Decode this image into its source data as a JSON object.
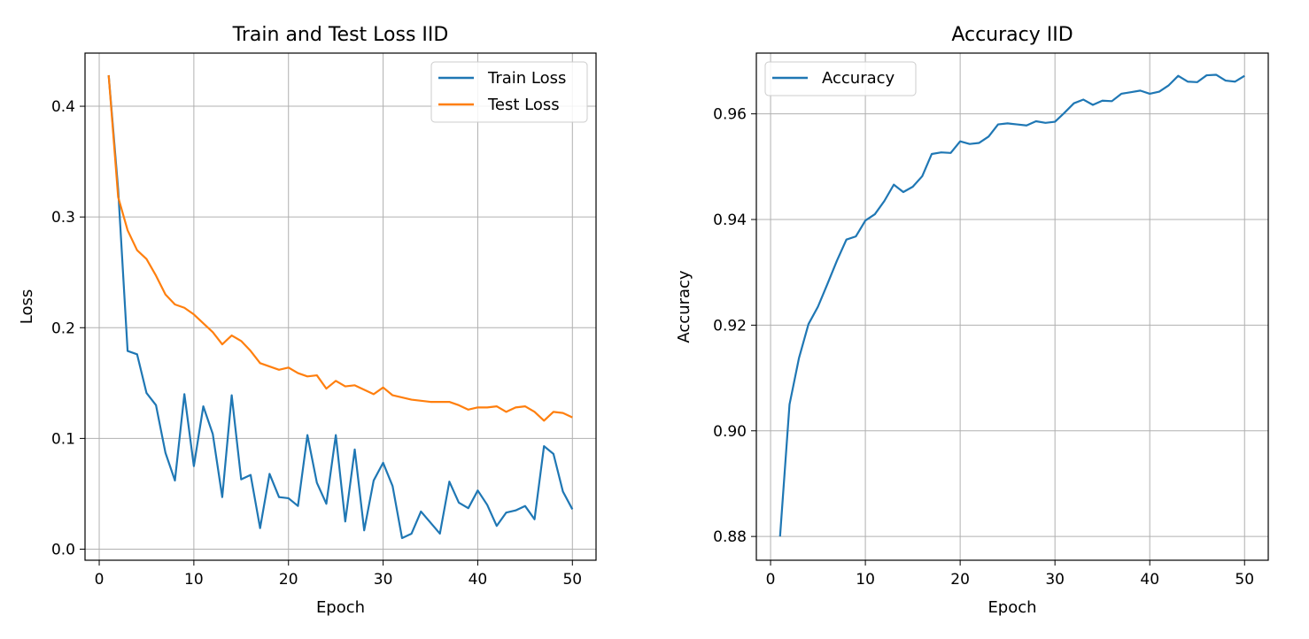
{
  "chart_data": [
    {
      "type": "line",
      "title": "Train and Test Loss IID",
      "xlabel": "Epoch",
      "ylabel": "Loss",
      "xlim": [
        -1.5,
        52.5
      ],
      "ylim": [
        -0.01,
        0.448
      ],
      "xticks": [
        0,
        10,
        20,
        30,
        40,
        50
      ],
      "xtick_labels": [
        "0",
        "10",
        "20",
        "30",
        "40",
        "50"
      ],
      "yticks": [
        0.0,
        0.1,
        0.2,
        0.3,
        0.4
      ],
      "ytick_labels": [
        "0.0",
        "0.1",
        "0.2",
        "0.3",
        "0.4"
      ],
      "grid": true,
      "legend": "top-right",
      "x": [
        1,
        2,
        3,
        4,
        5,
        6,
        7,
        8,
        9,
        10,
        11,
        12,
        13,
        14,
        15,
        16,
        17,
        18,
        19,
        20,
        21,
        22,
        23,
        24,
        25,
        26,
        27,
        28,
        29,
        30,
        31,
        32,
        33,
        34,
        35,
        36,
        37,
        38,
        39,
        40,
        41,
        42,
        43,
        44,
        45,
        46,
        47,
        48,
        49,
        50
      ],
      "series": [
        {
          "name": "Train Loss",
          "color": "#1f77b4",
          "values": [
            0.428,
            0.325,
            0.179,
            0.176,
            0.141,
            0.13,
            0.087,
            0.062,
            0.14,
            0.075,
            0.129,
            0.104,
            0.047,
            0.139,
            0.063,
            0.067,
            0.019,
            0.068,
            0.047,
            0.046,
            0.039,
            0.103,
            0.06,
            0.041,
            0.103,
            0.025,
            0.09,
            0.017,
            0.062,
            0.078,
            0.057,
            0.01,
            0.014,
            0.034,
            0.024,
            0.014,
            0.061,
            0.042,
            0.037,
            0.053,
            0.04,
            0.021,
            0.033,
            0.035,
            0.039,
            0.027,
            0.093,
            0.086,
            0.052,
            0.036
          ]
        },
        {
          "name": "Test Loss",
          "color": "#ff7f0e",
          "values": [
            0.428,
            0.318,
            0.288,
            0.27,
            0.262,
            0.247,
            0.23,
            0.221,
            0.218,
            0.212,
            0.204,
            0.196,
            0.185,
            0.193,
            0.188,
            0.179,
            0.168,
            0.165,
            0.162,
            0.164,
            0.159,
            0.156,
            0.157,
            0.145,
            0.152,
            0.147,
            0.148,
            0.144,
            0.14,
            0.146,
            0.139,
            0.137,
            0.135,
            0.134,
            0.133,
            0.133,
            0.133,
            0.13,
            0.126,
            0.128,
            0.128,
            0.129,
            0.124,
            0.128,
            0.129,
            0.124,
            0.116,
            0.124,
            0.123,
            0.119
          ]
        }
      ]
    },
    {
      "type": "line",
      "title": "Accuracy IID",
      "xlabel": "Epoch",
      "ylabel": "Accuracy",
      "xlim": [
        -1.5,
        52.5
      ],
      "ylim": [
        0.8755,
        0.9715
      ],
      "xticks": [
        0,
        10,
        20,
        30,
        40,
        50
      ],
      "xtick_labels": [
        "0",
        "10",
        "20",
        "30",
        "40",
        "50"
      ],
      "yticks": [
        0.88,
        0.9,
        0.92,
        0.94,
        0.96
      ],
      "ytick_labels": [
        "0.88",
        "0.90",
        "0.92",
        "0.94",
        "0.96"
      ],
      "grid": true,
      "legend": "top-left",
      "x": [
        1,
        2,
        3,
        4,
        5,
        6,
        7,
        8,
        9,
        10,
        11,
        12,
        13,
        14,
        15,
        16,
        17,
        18,
        19,
        20,
        21,
        22,
        23,
        24,
        25,
        26,
        27,
        28,
        29,
        30,
        31,
        32,
        33,
        34,
        35,
        36,
        37,
        38,
        39,
        40,
        41,
        42,
        43,
        44,
        45,
        46,
        47,
        48,
        49,
        50
      ],
      "series": [
        {
          "name": "Accuracy",
          "color": "#1f77b4",
          "values": [
            0.88,
            0.905,
            0.9138,
            0.9202,
            0.9235,
            0.9278,
            0.9322,
            0.9362,
            0.9368,
            0.9398,
            0.941,
            0.9435,
            0.9466,
            0.9452,
            0.9462,
            0.9482,
            0.9524,
            0.9527,
            0.9526,
            0.9548,
            0.9543,
            0.9545,
            0.9557,
            0.958,
            0.9582,
            0.958,
            0.9578,
            0.9586,
            0.9583,
            0.9585,
            0.9602,
            0.962,
            0.9627,
            0.9617,
            0.9625,
            0.9624,
            0.9638,
            0.9641,
            0.9644,
            0.9638,
            0.9642,
            0.9654,
            0.9672,
            0.9661,
            0.966,
            0.9673,
            0.9674,
            0.9663,
            0.9661,
            0.9672
          ]
        }
      ]
    }
  ]
}
